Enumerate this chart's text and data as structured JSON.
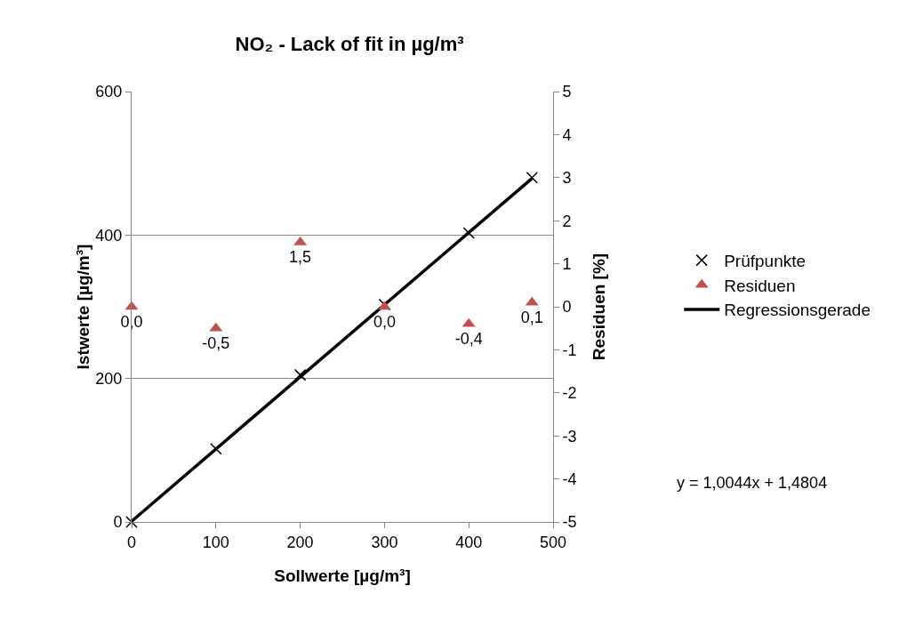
{
  "chart_data": {
    "type": "scatter",
    "title": "NO₂ - Lack of fit in µg/m³",
    "xlabel": "Sollwerte [µg/m³]",
    "ylabel": "Istwerte [µg/m³]",
    "y2label": "Residuen [%]",
    "xlim": [
      0,
      500
    ],
    "xticks": [
      0,
      100,
      200,
      300,
      400,
      500
    ],
    "ylim": [
      0,
      600
    ],
    "yticks": [
      0,
      200,
      400,
      600
    ],
    "y2lim": [
      -5,
      5
    ],
    "y2ticks": [
      -5,
      -4,
      -3,
      -2,
      -1,
      0,
      1,
      2,
      3,
      4,
      5
    ],
    "grid": "y",
    "legend": "right",
    "annotations": [
      "y = 1,0044x + 1,4804"
    ],
    "series": [
      {
        "name": "Prüfpunkte",
        "type": "scatter",
        "marker": "cross",
        "color": "#000000",
        "x": [
          0,
          100,
          200,
          300,
          400,
          475
        ],
        "values": [
          0,
          102,
          205,
          303,
          403,
          480
        ]
      },
      {
        "name": "Residuen",
        "type": "scatter",
        "marker": "triangle",
        "color": "#c0504d",
        "axis": "y2",
        "x": [
          0,
          100,
          200,
          300,
          400,
          475
        ],
        "values": [
          0.0,
          -0.5,
          1.5,
          0.0,
          -0.4,
          0.1
        ],
        "value_labels": [
          "0,0",
          "-0,5",
          "1,5",
          "0,0",
          "-0,4",
          "0,1"
        ]
      },
      {
        "name": "Regressionsgerade",
        "type": "line",
        "marker": "none",
        "line_style": "solid",
        "color": "#000000",
        "x": [
          0,
          475
        ],
        "values": [
          1,
          479
        ]
      }
    ]
  }
}
